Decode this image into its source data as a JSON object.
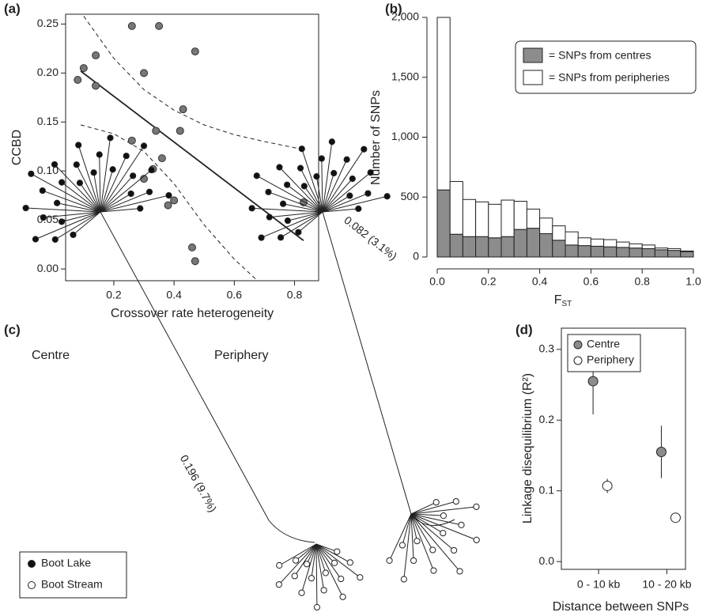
{
  "chart_data": [
    {
      "type": "scatter",
      "panel_label": "(a)",
      "xlabel": "Crossover rate heterogeneity",
      "ylabel": "CCBD",
      "xlim": [
        0.04,
        0.88
      ],
      "ylim": [
        -0.012,
        0.26
      ],
      "xticks": [
        0.2,
        0.4,
        0.6,
        0.8
      ],
      "yticks": [
        {
          "value": 0,
          "label": "0.00"
        },
        0.05,
        {
          "value": 0.1,
          "label": "0.10"
        },
        0.15,
        {
          "value": 0.2,
          "label": "0.20"
        },
        0.25
      ],
      "points": {
        "color": "#777777",
        "x": [
          0.08,
          0.1,
          0.14,
          0.14,
          0.26,
          0.35,
          0.3,
          0.47,
          0.43,
          0.42,
          0.34,
          0.36,
          0.26,
          0.33,
          0.3,
          0.4,
          0.38,
          0.46,
          0.47,
          0.83
        ],
        "y": [
          0.193,
          0.205,
          0.218,
          0.187,
          0.248,
          0.248,
          0.2,
          0.222,
          0.163,
          0.141,
          0.141,
          0.113,
          0.131,
          0.102,
          0.092,
          0.07,
          0.065,
          0.022,
          0.008,
          0.068
        ]
      },
      "lines": [
        {
          "style": "solid",
          "x": [
            0.09,
            0.83
          ],
          "values": [
            0.202,
            0.029
          ]
        },
        {
          "style": "dashed",
          "x": [
            0.1,
            0.2,
            0.3,
            0.4,
            0.5,
            0.6,
            0.7,
            0.83
          ],
          "values": [
            0.258,
            0.215,
            0.183,
            0.162,
            0.147,
            0.137,
            0.13,
            0.122
          ]
        },
        {
          "style": "dashed",
          "x": [
            0.09,
            0.2,
            0.3,
            0.4,
            0.5,
            0.6,
            0.67
          ],
          "values": [
            0.147,
            0.138,
            0.12,
            0.087,
            0.045,
            0.01,
            -0.01
          ]
        }
      ]
    },
    {
      "type": "histogram",
      "panel_label": "(b)",
      "ylabel": "Number of SNPs",
      "xlabel": {
        "main": "F",
        "sub": "ST"
      },
      "stacked": true,
      "bins": [
        0,
        0.05,
        0.1,
        0.15,
        0.2,
        0.25,
        0.3,
        0.35,
        0.4,
        0.45,
        0.5,
        0.55,
        0.6,
        0.65,
        0.7,
        0.75,
        0.8,
        0.85,
        0.9,
        0.95,
        1
      ],
      "xlim": [
        0,
        1
      ],
      "ylim": [
        0,
        2000
      ],
      "xticks": [
        {
          "value": 0,
          "label": "0.0"
        },
        0.2,
        0.4,
        0.6,
        0.8,
        {
          "value": 1,
          "label": "1.0"
        }
      ],
      "yticks": [
        0,
        500,
        {
          "value": 1000,
          "label": "1,000"
        },
        {
          "value": 1500,
          "label": "1,500"
        },
        {
          "value": 2000,
          "label": "2,000"
        }
      ],
      "series": [
        {
          "name": "= SNPs from centres",
          "color": "#8c8c8c",
          "values": [
            560,
            190,
            170,
            170,
            160,
            170,
            230,
            240,
            195,
            140,
            100,
            95,
            90,
            85,
            80,
            75,
            70,
            60,
            55,
            45
          ]
        },
        {
          "name": "= SNPs from peripheries",
          "color": "#ffffff",
          "values": [
            1440,
            440,
            310,
            290,
            280,
            305,
            235,
            160,
            130,
            120,
            110,
            65,
            60,
            60,
            45,
            35,
            30,
            15,
            15,
            5
          ]
        }
      ]
    },
    {
      "type": "tree",
      "panel_label": "(c)",
      "groups": [
        {
          "name": "Centre",
          "branch_label": "0.196 (9.7%)"
        },
        {
          "name": "Periphery",
          "branch_label": "0.082 (3.1%)"
        }
      ],
      "legend": [
        {
          "name": "Boot Lake",
          "color": "#111111"
        },
        {
          "name": "Boot Stream",
          "color": "#ffffff"
        }
      ]
    },
    {
      "type": "errorpoint",
      "panel_label": "(d)",
      "ylabel": "Linkage disequilibrium (R²)",
      "xlabel": "Distance between SNPs",
      "categories": [
        "0 - 10 kb",
        "10 - 20 kb"
      ],
      "ylim": [
        -0.011,
        0.33
      ],
      "yticks": [
        {
          "value": 0,
          "label": "0.0"
        },
        0.1,
        0.2,
        0.3
      ],
      "series": [
        {
          "name": "Centre",
          "color": "#8c8c8c",
          "values": [
            0.255,
            0.155
          ],
          "errors": [
            0.047,
            0.037
          ]
        },
        {
          "name": "Periphery",
          "color": "#ffffff",
          "values": [
            0.107,
            0.062
          ],
          "errors": [
            0.01,
            0.005
          ]
        }
      ]
    }
  ]
}
